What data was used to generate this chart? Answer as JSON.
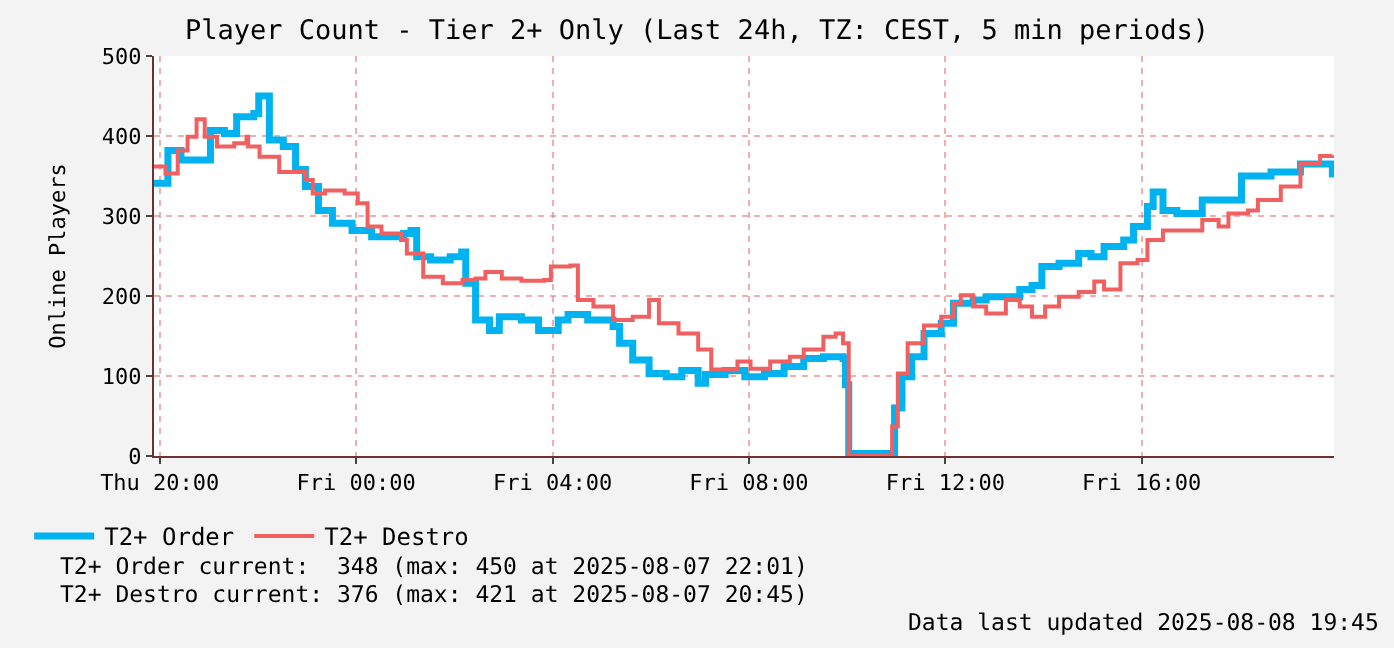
{
  "chart_data": {
    "type": "step",
    "title": "Player Count - Tier 2+ Only (Last 24h, TZ: CEST, 5 min periods)",
    "ylabel": "Online Players",
    "xlim": [
      "2025-08-07T19:53",
      "2025-08-08T19:55"
    ],
    "xticks": [
      {
        "value": "2025-08-07T20:00",
        "label": "Thu 20:00"
      },
      {
        "value": "2025-08-08T00:00",
        "label": "Fri 00:00"
      },
      {
        "value": "2025-08-08T04:00",
        "label": "Fri 04:00"
      },
      {
        "value": "2025-08-08T08:00",
        "label": "Fri 08:00"
      },
      {
        "value": "2025-08-08T12:00",
        "label": "Fri 12:00"
      },
      {
        "value": "2025-08-08T16:00",
        "label": "Fri 16:00"
      }
    ],
    "ylim": [
      0,
      500
    ],
    "yticks": [
      0,
      100,
      200,
      300,
      400,
      500
    ],
    "grid": true,
    "legend": "bottom left",
    "series": [
      {
        "name": "T2+ Order",
        "color": "#00b3f0",
        "x": [
          "2025-08-07T19:53",
          "2025-08-07T20:10",
          "2025-08-07T20:26",
          "2025-08-07T20:50",
          "2025-08-07T21:02",
          "2025-08-07T21:19",
          "2025-08-07T21:34",
          "2025-08-07T21:55",
          "2025-08-07T22:01",
          "2025-08-07T22:14",
          "2025-08-07T22:31",
          "2025-08-07T22:46",
          "2025-08-07T22:58",
          "2025-08-07T23:14",
          "2025-08-07T23:31",
          "2025-08-07T23:55",
          "2025-08-08T00:19",
          "2025-08-08T00:58",
          "2025-08-08T01:07",
          "2025-08-08T01:14",
          "2025-08-08T01:31",
          "2025-08-08T01:55",
          "2025-08-08T02:09",
          "2025-08-08T02:14",
          "2025-08-08T02:26",
          "2025-08-08T02:43",
          "2025-08-08T02:55",
          "2025-08-08T03:22",
          "2025-08-08T03:43",
          "2025-08-08T04:07",
          "2025-08-08T04:19",
          "2025-08-08T04:43",
          "2025-08-08T05:14",
          "2025-08-08T05:22",
          "2025-08-08T05:38",
          "2025-08-08T05:58",
          "2025-08-08T06:19",
          "2025-08-08T06:38",
          "2025-08-08T06:58",
          "2025-08-08T07:07",
          "2025-08-08T07:31",
          "2025-08-08T07:55",
          "2025-08-08T08:19",
          "2025-08-08T08:43",
          "2025-08-08T09:07",
          "2025-08-08T09:31",
          "2025-08-08T09:55",
          "2025-08-08T09:58",
          "2025-08-08T10:02",
          "2025-08-08T10:50",
          "2025-08-08T10:58",
          "2025-08-08T11:07",
          "2025-08-08T11:19",
          "2025-08-08T11:34",
          "2025-08-08T11:55",
          "2025-08-08T12:10",
          "2025-08-08T12:34",
          "2025-08-08T12:50",
          "2025-08-08T13:14",
          "2025-08-08T13:31",
          "2025-08-08T13:46",
          "2025-08-08T13:58",
          "2025-08-08T14:19",
          "2025-08-08T14:43",
          "2025-08-08T14:58",
          "2025-08-08T15:14",
          "2025-08-08T15:38",
          "2025-08-08T15:50",
          "2025-08-08T16:07",
          "2025-08-08T16:14",
          "2025-08-08T16:26",
          "2025-08-08T16:43",
          "2025-08-08T17:14",
          "2025-08-08T18:02",
          "2025-08-08T18:38",
          "2025-08-08T19:14",
          "2025-08-08T19:43",
          "2025-08-08T19:53"
        ],
        "values": [
          341,
          382,
          370,
          370,
          407,
          403,
          424,
          428,
          450,
          395,
          387,
          358,
          337,
          307,
          291,
          282,
          274,
          278,
          282,
          249,
          245,
          249,
          255,
          216,
          170,
          157,
          174,
          170,
          157,
          170,
          177,
          170,
          162,
          141,
          120,
          103,
          99,
          107,
          91,
          102,
          107,
          99,
          103,
          112,
          122,
          124,
          122,
          89,
          3,
          3,
          60,
          99,
          124,
          153,
          166,
          191,
          195,
          199,
          199,
          208,
          213,
          237,
          241,
          253,
          249,
          262,
          270,
          287,
          312,
          330,
          307,
          303,
          320,
          350,
          355,
          365,
          365,
          348
        ]
      },
      {
        "name": "T2+ Destro",
        "color": "#f06060",
        "x": [
          "2025-08-07T19:53",
          "2025-08-07T20:07",
          "2025-08-07T20:22",
          "2025-08-07T20:34",
          "2025-08-07T20:45",
          "2025-08-07T20:55",
          "2025-08-07T21:10",
          "2025-08-07T21:31",
          "2025-08-07T21:46",
          "2025-08-07T21:48",
          "2025-08-07T22:02",
          "2025-08-07T22:26",
          "2025-08-07T22:50",
          "2025-08-07T22:58",
          "2025-08-07T23:07",
          "2025-08-07T23:22",
          "2025-08-07T23:46",
          "2025-08-08T00:02",
          "2025-08-08T00:14",
          "2025-08-08T00:31",
          "2025-08-08T00:55",
          "2025-08-08T01:02",
          "2025-08-08T01:22",
          "2025-08-08T01:46",
          "2025-08-08T02:10",
          "2025-08-08T02:26",
          "2025-08-08T02:38",
          "2025-08-08T02:58",
          "2025-08-08T03:22",
          "2025-08-08T03:50",
          "2025-08-08T03:58",
          "2025-08-08T04:22",
          "2025-08-08T04:31",
          "2025-08-08T04:50",
          "2025-08-08T05:14",
          "2025-08-08T05:38",
          "2025-08-08T05:58",
          "2025-08-08T06:10",
          "2025-08-08T06:34",
          "2025-08-08T06:58",
          "2025-08-08T07:14",
          "2025-08-08T07:46",
          "2025-08-08T08:02",
          "2025-08-08T08:26",
          "2025-08-08T08:50",
          "2025-08-08T09:07",
          "2025-08-08T09:31",
          "2025-08-08T09:46",
          "2025-08-08T09:55",
          "2025-08-08T10:02",
          "2025-08-08T10:50",
          "2025-08-08T10:55",
          "2025-08-08T11:02",
          "2025-08-08T11:14",
          "2025-08-08T11:34",
          "2025-08-08T11:55",
          "2025-08-08T12:10",
          "2025-08-08T12:19",
          "2025-08-08T12:34",
          "2025-08-08T12:50",
          "2025-08-08T13:14",
          "2025-08-08T13:31",
          "2025-08-08T13:46",
          "2025-08-08T14:02",
          "2025-08-08T14:19",
          "2025-08-08T14:43",
          "2025-08-08T15:02",
          "2025-08-08T15:14",
          "2025-08-08T15:34",
          "2025-08-08T15:55",
          "2025-08-08T16:07",
          "2025-08-08T16:26",
          "2025-08-08T16:55",
          "2025-08-08T17:14",
          "2025-08-08T17:34",
          "2025-08-08T17:46",
          "2025-08-08T18:10",
          "2025-08-08T18:22",
          "2025-08-08T18:50",
          "2025-08-08T19:14",
          "2025-08-08T19:38",
          "2025-08-08T19:53"
        ],
        "values": [
          362,
          353,
          382,
          399,
          421,
          399,
          387,
          391,
          399,
          387,
          374,
          355,
          355,
          345,
          328,
          332,
          328,
          316,
          287,
          278,
          270,
          253,
          224,
          216,
          220,
          222,
          230,
          222,
          219,
          220,
          237,
          238,
          195,
          187,
          170,
          174,
          195,
          166,
          153,
          133,
          108,
          118,
          109,
          118,
          124,
          133,
          149,
          153,
          141,
          0,
          0,
          37,
          103,
          141,
          163,
          174,
          191,
          201,
          187,
          178,
          195,
          187,
          174,
          187,
          199,
          205,
          218,
          208,
          241,
          245,
          270,
          282,
          282,
          295,
          287,
          303,
          307,
          320,
          337,
          365,
          375,
          376
        ]
      }
    ],
    "annotations": [
      "T2+ Order current:  348 (max: 450 at 2025-08-07 22:01)",
      "T2+ Destro current: 376 (max: 421 at 2025-08-07 20:45)",
      "Data last updated 2025-08-08 19:45"
    ]
  }
}
